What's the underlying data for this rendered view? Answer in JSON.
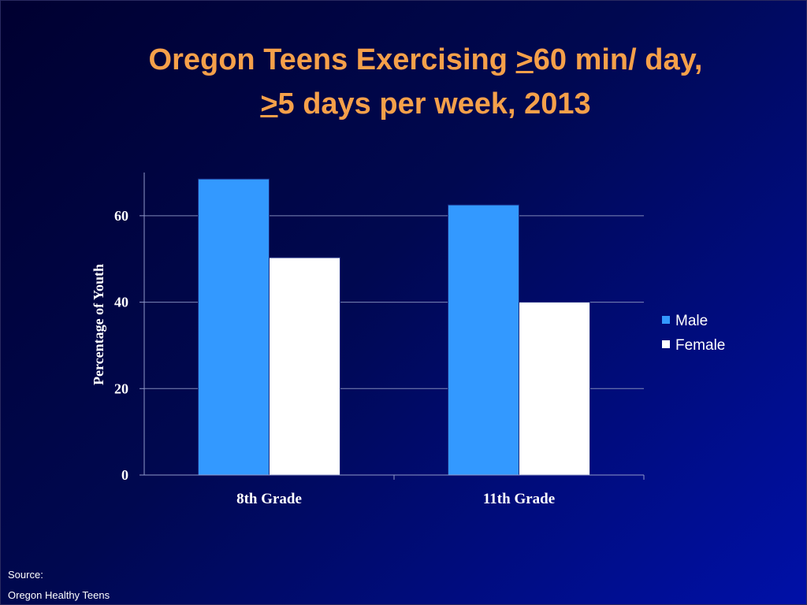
{
  "slide": {
    "title_parts": [
      "Oregon Teens Exercising ",
      ">",
      "60 min/ day,",
      ">",
      "5 days per week, 2013"
    ],
    "source_label": "Source:",
    "source_value": "Oregon Healthy Teens"
  },
  "chart_data": {
    "type": "bar",
    "categories": [
      "8th Grade",
      "11th Grade"
    ],
    "series": [
      {
        "name": "Male",
        "values": [
          68.5,
          62.5
        ],
        "color": "#3399ff"
      },
      {
        "name": "Female",
        "values": [
          50.3,
          40.0
        ],
        "color": "#ffffff"
      }
    ],
    "ylabel": "Percentage of Youth",
    "ylim": [
      0,
      70
    ],
    "yticks": [
      0,
      20,
      40,
      60
    ],
    "grid": true,
    "legend": "right"
  }
}
